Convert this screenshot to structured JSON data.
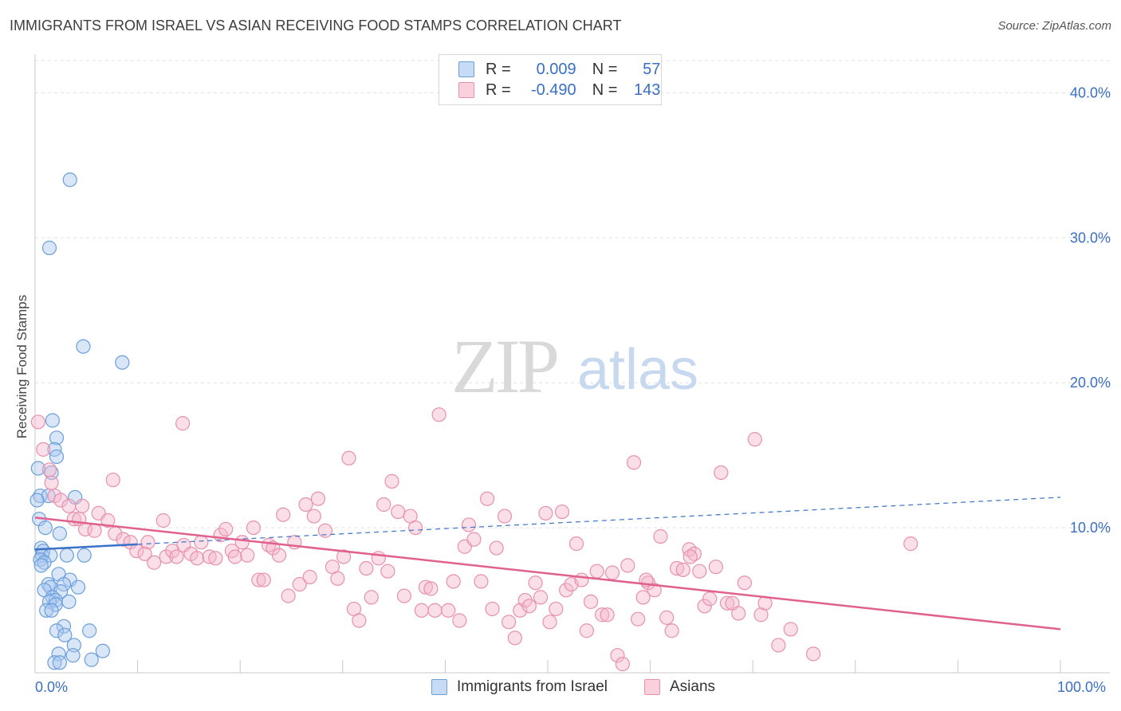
{
  "header": {
    "title": "IMMIGRANTS FROM ISRAEL VS ASIAN RECEIVING FOOD STAMPS CORRELATION CHART",
    "source": "Source: ZipAtlas.com"
  },
  "watermark": {
    "zip": "ZIP",
    "atlas": "atlas"
  },
  "legend": {
    "rows": [
      {
        "r_label": "R =",
        "r_value": "0.009",
        "n_label": "N =",
        "n_value": "57",
        "color": "#aac8f0"
      },
      {
        "r_label": "R =",
        "r_value": "-0.490",
        "n_label": "N =",
        "n_value": "143",
        "color": "#f5b8cc"
      }
    ]
  },
  "bottom_legend": {
    "israel": "Immigrants from Israel",
    "asians": "Asians"
  },
  "colors": {
    "israel_fill": "#aac8f0",
    "israel_stroke": "#6a9fdc",
    "israel_line": "#3a72c8",
    "asian_fill": "#f5b8cc",
    "asian_stroke": "#e890ad",
    "asian_line": "#e0608e",
    "grid": "#e2e2e2",
    "tick_text": "#3a6fc4"
  },
  "chart_data": {
    "type": "scatter",
    "title": "IMMIGRANTS FROM ISRAEL VS ASIAN RECEIVING FOOD STAMPS CORRELATION CHART",
    "xlabel": "",
    "ylabel": "Receiving Food Stamps",
    "xlim": [
      0,
      100
    ],
    "ylim": [
      0,
      42
    ],
    "x_ticks": [
      "0.0%",
      "100.0%"
    ],
    "y_ticks": [
      {
        "value": 10,
        "label": "10.0%"
      },
      {
        "value": 20,
        "label": "20.0%"
      },
      {
        "value": 30,
        "label": "30.0%"
      },
      {
        "value": 40,
        "label": "40.0%"
      }
    ],
    "grid": true,
    "legend_position": "top-center",
    "series": [
      {
        "name": "Immigrants from Israel",
        "R": 0.009,
        "N": 57,
        "trend": {
          "x": [
            0,
            100
          ],
          "y": [
            8.5,
            12.1
          ],
          "solid_until_x": 10
        },
        "points": [
          [
            3.4,
            34.0
          ],
          [
            1.4,
            29.3
          ],
          [
            4.7,
            22.5
          ],
          [
            8.5,
            21.4
          ],
          [
            1.7,
            17.4
          ],
          [
            2.1,
            16.2
          ],
          [
            1.9,
            15.4
          ],
          [
            2.1,
            14.9
          ],
          [
            0.3,
            14.1
          ],
          [
            1.6,
            13.8
          ],
          [
            0.5,
            12.2
          ],
          [
            1.3,
            12.2
          ],
          [
            3.9,
            12.1
          ],
          [
            0.2,
            11.9
          ],
          [
            0.4,
            10.6
          ],
          [
            1.0,
            10.0
          ],
          [
            2.4,
            9.6
          ],
          [
            0.6,
            8.6
          ],
          [
            0.8,
            8.4
          ],
          [
            0.7,
            8.1
          ],
          [
            1.5,
            8.1
          ],
          [
            3.1,
            8.1
          ],
          [
            4.8,
            8.1
          ],
          [
            0.5,
            7.8
          ],
          [
            0.9,
            7.6
          ],
          [
            0.6,
            7.4
          ],
          [
            2.3,
            6.8
          ],
          [
            3.4,
            6.4
          ],
          [
            1.3,
            6.1
          ],
          [
            2.8,
            6.1
          ],
          [
            1.5,
            5.9
          ],
          [
            4.2,
            5.9
          ],
          [
            0.9,
            5.7
          ],
          [
            2.5,
            5.6
          ],
          [
            1.7,
            5.2
          ],
          [
            2.0,
            5.0
          ],
          [
            1.4,
            4.9
          ],
          [
            3.3,
            4.9
          ],
          [
            2.0,
            4.7
          ],
          [
            1.1,
            4.3
          ],
          [
            1.6,
            4.3
          ],
          [
            2.8,
            3.2
          ],
          [
            2.1,
            2.9
          ],
          [
            5.3,
            2.9
          ],
          [
            2.9,
            2.6
          ],
          [
            3.8,
            1.9
          ],
          [
            2.3,
            1.3
          ],
          [
            3.7,
            1.2
          ],
          [
            6.6,
            1.5
          ],
          [
            5.5,
            0.9
          ],
          [
            1.9,
            0.7
          ],
          [
            2.4,
            0.7
          ]
        ]
      },
      {
        "name": "Asians",
        "R": -0.49,
        "N": 143,
        "trend": {
          "x": [
            0,
            100
          ],
          "y": [
            10.7,
            3.0
          ]
        },
        "points": [
          [
            0.3,
            17.3
          ],
          [
            0.8,
            15.4
          ],
          [
            1.4,
            14.0
          ],
          [
            1.6,
            13.1
          ],
          [
            1.9,
            12.2
          ],
          [
            2.5,
            11.9
          ],
          [
            3.3,
            11.5
          ],
          [
            4.6,
            11.5
          ],
          [
            6.2,
            11.0
          ],
          [
            3.8,
            10.6
          ],
          [
            4.3,
            10.6
          ],
          [
            7.1,
            10.5
          ],
          [
            4.9,
            9.9
          ],
          [
            5.8,
            9.8
          ],
          [
            7.8,
            9.6
          ],
          [
            8.6,
            9.2
          ],
          [
            9.3,
            9.0
          ],
          [
            11.0,
            9.0
          ],
          [
            12.5,
            10.5
          ],
          [
            7.6,
            13.3
          ],
          [
            14.4,
            17.2
          ],
          [
            9.9,
            8.4
          ],
          [
            10.7,
            8.2
          ],
          [
            11.6,
            7.6
          ],
          [
            12.8,
            8.0
          ],
          [
            13.4,
            8.4
          ],
          [
            13.8,
            8.0
          ],
          [
            14.5,
            8.8
          ],
          [
            15.2,
            8.2
          ],
          [
            15.8,
            7.9
          ],
          [
            16.2,
            9.0
          ],
          [
            17.0,
            8.0
          ],
          [
            17.6,
            7.9
          ],
          [
            18.1,
            9.5
          ],
          [
            18.6,
            9.9
          ],
          [
            19.2,
            8.4
          ],
          [
            19.5,
            8.0
          ],
          [
            20.2,
            9.0
          ],
          [
            20.7,
            8.1
          ],
          [
            21.3,
            10.0
          ],
          [
            21.8,
            6.4
          ],
          [
            22.3,
            6.4
          ],
          [
            22.8,
            8.8
          ],
          [
            23.2,
            8.6
          ],
          [
            23.8,
            8.1
          ],
          [
            24.2,
            10.9
          ],
          [
            24.7,
            5.3
          ],
          [
            25.3,
            9.0
          ],
          [
            25.8,
            6.1
          ],
          [
            26.4,
            11.6
          ],
          [
            26.8,
            6.6
          ],
          [
            27.2,
            10.8
          ],
          [
            27.6,
            12.0
          ],
          [
            28.3,
            9.8
          ],
          [
            29.0,
            7.3
          ],
          [
            29.5,
            6.5
          ],
          [
            30.1,
            8.0
          ],
          [
            30.6,
            14.8
          ],
          [
            31.1,
            4.4
          ],
          [
            31.6,
            3.6
          ],
          [
            32.3,
            7.2
          ],
          [
            32.8,
            5.2
          ],
          [
            33.5,
            7.9
          ],
          [
            34.0,
            11.6
          ],
          [
            34.4,
            7.0
          ],
          [
            34.8,
            13.2
          ],
          [
            35.4,
            11.1
          ],
          [
            36.0,
            5.3
          ],
          [
            36.6,
            10.8
          ],
          [
            37.1,
            10.0
          ],
          [
            37.7,
            4.3
          ],
          [
            38.1,
            5.9
          ],
          [
            38.6,
            5.8
          ],
          [
            39.4,
            17.8
          ],
          [
            39.0,
            4.3
          ],
          [
            40.3,
            4.3
          ],
          [
            40.8,
            6.3
          ],
          [
            41.4,
            3.6
          ],
          [
            41.9,
            8.7
          ],
          [
            42.3,
            10.2
          ],
          [
            42.8,
            9.2
          ],
          [
            43.5,
            6.3
          ],
          [
            44.1,
            12.0
          ],
          [
            44.6,
            4.4
          ],
          [
            45.0,
            8.6
          ],
          [
            45.8,
            10.8
          ],
          [
            46.2,
            3.5
          ],
          [
            46.8,
            2.4
          ],
          [
            47.3,
            4.3
          ],
          [
            47.8,
            5.0
          ],
          [
            48.2,
            4.6
          ],
          [
            48.8,
            6.2
          ],
          [
            49.3,
            5.2
          ],
          [
            49.8,
            11.0
          ],
          [
            50.2,
            3.5
          ],
          [
            50.8,
            4.4
          ],
          [
            51.4,
            11.1
          ],
          [
            51.8,
            5.7
          ],
          [
            52.3,
            6.1
          ],
          [
            52.8,
            8.9
          ],
          [
            53.3,
            6.4
          ],
          [
            53.8,
            2.9
          ],
          [
            54.2,
            4.9
          ],
          [
            54.8,
            7.0
          ],
          [
            55.3,
            4.0
          ],
          [
            55.8,
            4.0
          ],
          [
            56.3,
            6.9
          ],
          [
            56.8,
            1.2
          ],
          [
            57.3,
            0.6
          ],
          [
            57.8,
            7.4
          ],
          [
            58.4,
            14.5
          ],
          [
            58.8,
            3.7
          ],
          [
            59.3,
            5.2
          ],
          [
            59.8,
            6.2
          ],
          [
            60.4,
            5.7
          ],
          [
            61.0,
            9.4
          ],
          [
            61.6,
            3.8
          ],
          [
            62.1,
            2.9
          ],
          [
            62.6,
            7.2
          ],
          [
            63.2,
            7.1
          ],
          [
            63.8,
            8.5
          ],
          [
            64.3,
            8.2
          ],
          [
            64.8,
            7.0
          ],
          [
            65.3,
            4.6
          ],
          [
            65.8,
            5.1
          ],
          [
            66.4,
            7.3
          ],
          [
            66.9,
            13.8
          ],
          [
            67.5,
            4.8
          ],
          [
            68.0,
            4.8
          ],
          [
            68.6,
            4.1
          ],
          [
            69.2,
            6.2
          ],
          [
            70.2,
            16.1
          ],
          [
            70.8,
            4.0
          ],
          [
            71.2,
            4.8
          ],
          [
            72.5,
            1.9
          ],
          [
            73.7,
            3.0
          ],
          [
            75.9,
            1.3
          ],
          [
            85.4,
            8.9
          ],
          [
            63.9,
            8.0
          ],
          [
            59.6,
            6.4
          ]
        ]
      }
    ]
  }
}
